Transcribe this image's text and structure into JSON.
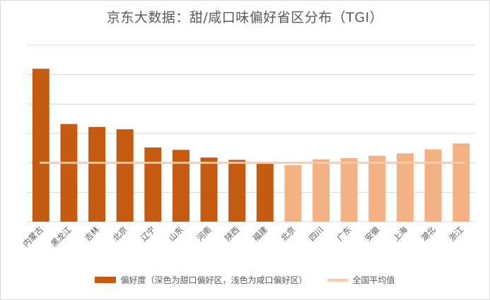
{
  "chart_data": {
    "type": "bar",
    "title": "京东大数据：甜/咸口味偏好省区分布（TGI）",
    "categories": [
      "内蒙古",
      "黑龙江",
      "吉林",
      "北京",
      "辽宁",
      "山东",
      "河南",
      "陕西",
      "福建",
      "北京",
      "四川",
      "广东",
      "安徽",
      "上海",
      "湖北",
      "浙江"
    ],
    "values": [
      2.6,
      1.66,
      1.61,
      1.57,
      1.26,
      1.22,
      1.09,
      1.05,
      1.01,
      0.96,
      1.06,
      1.08,
      1.12,
      1.16,
      1.23,
      1.33
    ],
    "groups": [
      "sweet",
      "sweet",
      "sweet",
      "sweet",
      "sweet",
      "sweet",
      "sweet",
      "sweet",
      "sweet",
      "salty",
      "salty",
      "salty",
      "salty",
      "salty",
      "salty",
      "salty"
    ],
    "reference_line": {
      "name": "全国平均值",
      "value": 1.0
    },
    "ylim": [
      0,
      3.0
    ],
    "ytick_step": 0.5,
    "y_tick_labels_shown": false,
    "grid": true,
    "legend_position": "bottom",
    "legend": {
      "bar_label": "偏好度（深色为甜口偏好区，浅色为咸口偏好区）",
      "line_label": "全国平均值"
    },
    "colors": {
      "sweet": "#c55a11",
      "salty": "#f4b183",
      "average_line": "#f8cbad",
      "grid": "#d9d9d9",
      "axis": "#d9d9d9"
    }
  }
}
